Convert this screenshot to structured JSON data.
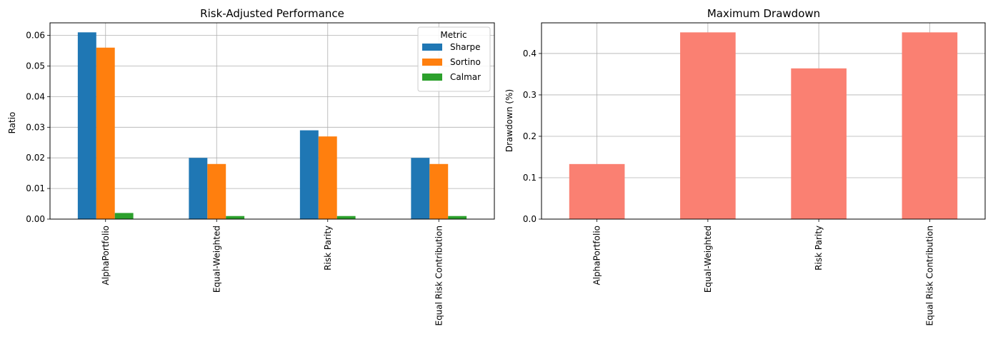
{
  "chart_data": [
    {
      "type": "bar",
      "title": "Risk-Adjusted Performance",
      "xlabel": "",
      "ylabel": "Ratio",
      "ylim": [
        0,
        0.0641
      ],
      "yticks": [
        "0.00",
        "0.01",
        "0.02",
        "0.03",
        "0.04",
        "0.05",
        "0.06"
      ],
      "grid": true,
      "legend": {
        "title": "Metric",
        "placement": "top-right"
      },
      "categories": [
        "AlphaPortfolio",
        "Equal-Weighted",
        "Risk Parity",
        "Equal Risk Contribution"
      ],
      "series": [
        {
          "name": "Sharpe",
          "color": "#1f77b4",
          "values": [
            0.061,
            0.02,
            0.029,
            0.02
          ]
        },
        {
          "name": "Sortino",
          "color": "#ff7f0e",
          "values": [
            0.056,
            0.018,
            0.027,
            0.018
          ]
        },
        {
          "name": "Calmar",
          "color": "#2ca02c",
          "values": [
            0.002,
            0.001,
            0.001,
            0.001
          ]
        }
      ]
    },
    {
      "type": "bar",
      "title": "Maximum Drawdown",
      "xlabel": "",
      "ylabel": "Drawdown (%)",
      "ylim": [
        0,
        0.474
      ],
      "yticks": [
        "0.0",
        "0.1",
        "0.2",
        "0.3",
        "0.4"
      ],
      "grid": true,
      "categories": [
        "AlphaPortfolio",
        "Equal-Weighted",
        "Risk Parity",
        "Equal Risk Contribution"
      ],
      "series": [
        {
          "color": "#fa8072",
          "values": [
            0.133,
            0.451,
            0.364,
            0.451
          ]
        }
      ]
    }
  ]
}
